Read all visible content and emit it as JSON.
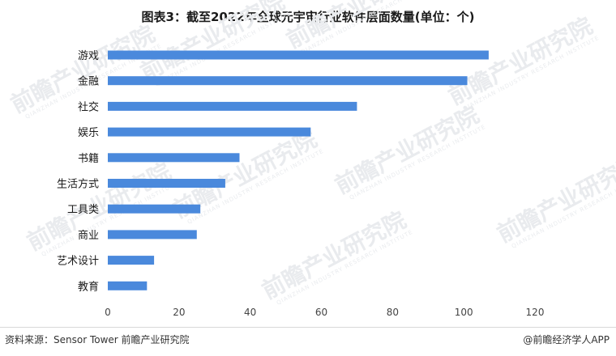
{
  "title": "图表3：截至2022年全球元宇宙行业软件层面数量(单位：个)",
  "watermark": {
    "text": "前瞻产业研究院",
    "sub": "QIANZHAN INDUSTRY RESEARCH INSTITUTE"
  },
  "footer": {
    "source": "资料来源：Sensor Tower 前瞻产业研究院",
    "brand": "@前瞻经济学人APP"
  },
  "chart_data": {
    "type": "bar",
    "orientation": "horizontal",
    "categories": [
      "游戏",
      "金融",
      "社交",
      "娱乐",
      "书籍",
      "生活方式",
      "工具类",
      "商业",
      "艺术设计",
      "教育"
    ],
    "values": [
      107,
      101,
      70,
      57,
      37,
      33,
      26,
      25,
      13,
      11
    ],
    "xlim": [
      0,
      120
    ],
    "xticks": [
      0,
      20,
      40,
      60,
      80,
      100,
      120
    ],
    "grid": false,
    "bar_color": "#4a89dc"
  }
}
